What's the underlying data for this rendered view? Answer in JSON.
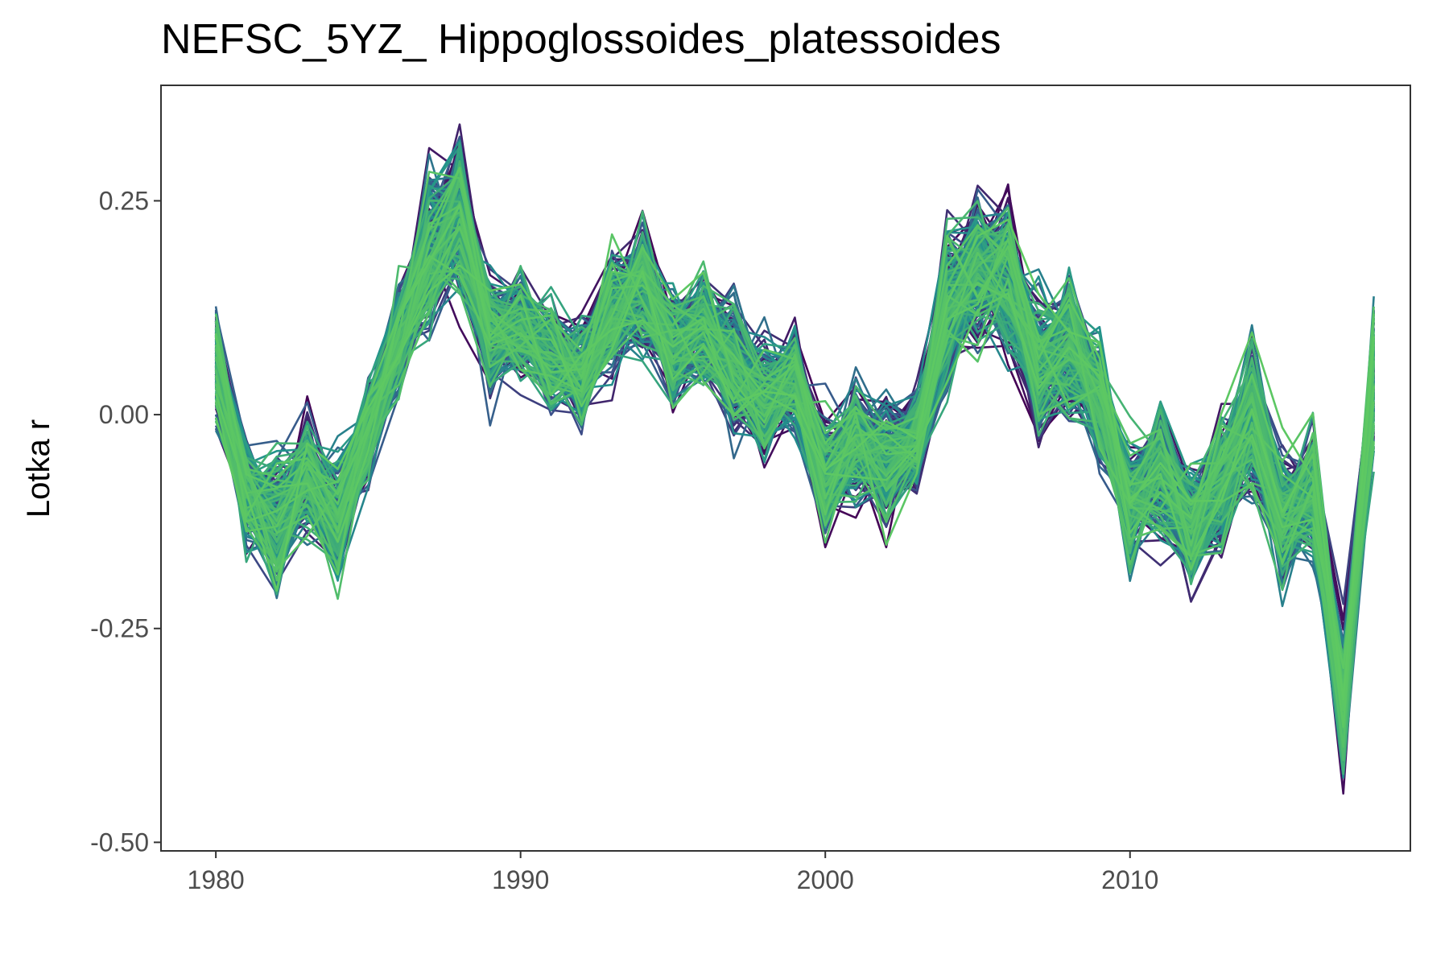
{
  "chart_data": {
    "type": "line",
    "title": "NEFSC_5YZ_ Hippoglossoides_platessoides",
    "xlabel": "",
    "ylabel": "Lotka r",
    "xlim": [
      1978.2,
      2019.2
    ],
    "ylim": [
      -0.51,
      0.385
    ],
    "x_ticks": [
      1980,
      1990,
      2000,
      2010
    ],
    "x_tick_labels": [
      "1980",
      "1990",
      "2000",
      "2010"
    ],
    "y_ticks": [
      -0.5,
      -0.25,
      0.0,
      0.25
    ],
    "y_tick_labels": [
      "-0.50",
      "-0.25",
      "0.00",
      "0.25"
    ],
    "grid": false,
    "legend": "none",
    "palette": [
      "#440154",
      "#3b528b",
      "#21918c",
      "#5ec962"
    ],
    "colors": {
      "panel_border": "#333333",
      "tick_text": "#4d4d4d",
      "title_text": "#000000"
    },
    "x": [
      1980,
      1981,
      1982,
      1983,
      1984,
      1985,
      1986,
      1987,
      1988,
      1989,
      1990,
      1991,
      1992,
      1993,
      1994,
      1995,
      1996,
      1997,
      1998,
      1999,
      2000,
      2001,
      2002,
      2003,
      2004,
      2005,
      2006,
      2007,
      2008,
      2009,
      2010,
      2011,
      2012,
      2013,
      2014,
      2015,
      2016,
      2017,
      2018
    ],
    "central_series": [
      0.06,
      -0.09,
      -0.12,
      -0.07,
      -0.12,
      -0.02,
      0.09,
      0.19,
      0.24,
      0.09,
      0.11,
      0.07,
      0.05,
      0.12,
      0.15,
      0.08,
      0.1,
      0.06,
      0.02,
      0.04,
      -0.07,
      -0.03,
      -0.05,
      -0.03,
      0.13,
      0.17,
      0.16,
      0.06,
      0.08,
      0.02,
      -0.1,
      -0.06,
      -0.13,
      -0.08,
      0.0,
      -0.12,
      -0.09,
      -0.34,
      0.05
    ],
    "spread": [
      0.09,
      0.09,
      0.11,
      0.09,
      0.11,
      0.08,
      0.09,
      0.13,
      0.13,
      0.1,
      0.08,
      0.09,
      0.08,
      0.1,
      0.11,
      0.09,
      0.09,
      0.1,
      0.09,
      0.08,
      0.1,
      0.09,
      0.1,
      0.09,
      0.13,
      0.12,
      0.12,
      0.11,
      0.12,
      0.1,
      0.1,
      0.11,
      0.1,
      0.1,
      0.13,
      0.11,
      0.1,
      0.12,
      0.12
    ],
    "n_series": 220
  }
}
